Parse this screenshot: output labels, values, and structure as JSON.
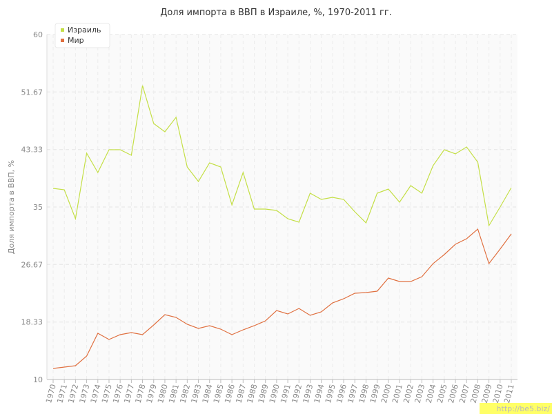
{
  "chart_data": {
    "type": "line",
    "title": "Доля импорта в ВВП в Израиле, %, 1970-2011 гг.",
    "y_label": "Доля импорта в ВВП, %",
    "watermark": "http://be5.biz/",
    "categories": [
      "1970",
      "1971",
      "1972",
      "1973",
      "1974",
      "1975",
      "1976",
      "1977",
      "1978",
      "1979",
      "1980",
      "1981",
      "1982",
      "1983",
      "1984",
      "1985",
      "1986",
      "1987",
      "1988",
      "1989",
      "1990",
      "1991",
      "1992",
      "1993",
      "1994",
      "1995",
      "1996",
      "1997",
      "1998",
      "1999",
      "2000",
      "2001",
      "2002",
      "2003",
      "2004",
      "2005",
      "2006",
      "2007",
      "2008",
      "2009",
      "2010",
      "2011"
    ],
    "series": [
      {
        "name": "Израиль",
        "color": "#c4df46",
        "values": [
          37.7,
          37.5,
          33.3,
          42.8,
          40.0,
          43.3,
          43.3,
          42.5,
          52.6,
          47.1,
          45.9,
          48.0,
          40.8,
          38.7,
          41.4,
          40.8,
          35.3,
          40.0,
          34.7,
          34.7,
          34.5,
          33.3,
          32.8,
          37.0,
          36.1,
          36.4,
          36.1,
          34.3,
          32.7,
          37.0,
          37.6,
          35.7,
          38.1,
          37.0,
          41.0,
          43.3,
          42.7,
          43.7,
          41.5,
          32.3,
          35.0,
          37.8
        ]
      },
      {
        "name": "Мир",
        "color": "#e07040",
        "values": [
          11.6,
          11.8,
          12.0,
          13.4,
          16.7,
          15.8,
          16.5,
          16.8,
          16.5,
          17.9,
          19.4,
          19.0,
          18.0,
          17.4,
          17.8,
          17.3,
          16.5,
          17.2,
          17.8,
          18.5,
          20.0,
          19.5,
          20.3,
          19.3,
          19.8,
          21.1,
          21.7,
          22.5,
          22.6,
          22.8,
          24.7,
          24.2,
          24.2,
          24.9,
          26.8,
          28.1,
          29.6,
          30.4,
          31.8,
          26.8,
          28.9,
          31.1
        ]
      }
    ],
    "ylim": [
      10,
      60
    ],
    "yticks": [
      10,
      18.33,
      26.67,
      35,
      43.33,
      51.67,
      60
    ],
    "grid": true,
    "legend": "top-left"
  }
}
